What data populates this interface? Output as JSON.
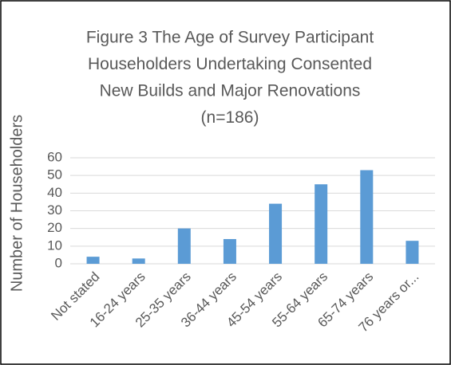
{
  "chart_data": {
    "type": "bar",
    "title": [
      "Figure 3 The Age of Survey Participant",
      "Householders Undertaking Consented",
      "New Builds and Major Renovations",
      "(n=186)"
    ],
    "y_label": "Number of Householders",
    "categories": [
      "Not stated",
      "16-24 years",
      "25-35 years",
      "36-44 years",
      "45-54 years",
      "55-64 years",
      "65-74 years",
      "76 years or..."
    ],
    "values": [
      4,
      3,
      20,
      14,
      34,
      45,
      53,
      13
    ],
    "color": "#5b9bd5",
    "ylim": [
      0,
      60
    ],
    "yticks": [
      0,
      10,
      20,
      30,
      40,
      50,
      60
    ],
    "grid": true
  }
}
